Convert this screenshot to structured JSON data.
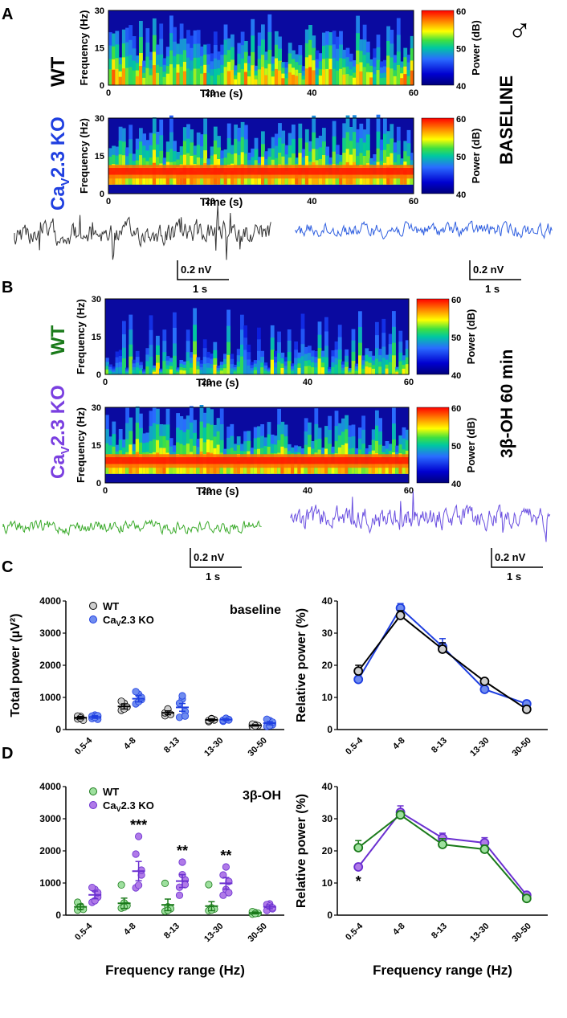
{
  "colors": {
    "wt_text": "#000000",
    "ko_text_a": "#1f3fe0",
    "wt_text_b": "#1a7a1a",
    "ko_text_b": "#7a3fe0",
    "wt_fill_c": "#cfcfcf",
    "ko_fill_c": "#6f8cf0",
    "wt_line_c": "#000000",
    "ko_line_c": "#1f3fe0",
    "wt_fill_d": "#9ee09e",
    "ko_fill_d": "#b07ae8",
    "wt_line_d": "#1a7a1a",
    "ko_line_d": "#6a2fd0",
    "trace_wt_a": "#333333",
    "trace_ko_a": "#2f5fe0",
    "trace_wt_b": "#3aaa2a",
    "trace_ko_b": "#6a4fe0"
  },
  "panels": {
    "A": {
      "letter": "A",
      "condition": "BASELINE",
      "sex_symbol": "♂",
      "rows": [
        {
          "label": "WT",
          "label_color_key": "wt_text"
        },
        {
          "label_main": "Ca",
          "label_sub": "V",
          "label_rest": "2.3 KO",
          "label_color_key": "ko_text_a"
        }
      ],
      "scale_bar": {
        "voltage": "0.2 nV",
        "time": "1 s"
      }
    },
    "B": {
      "letter": "B",
      "condition": "3β-OH 60 min",
      "rows": [
        {
          "label": "WT",
          "label_color_key": "wt_text_b"
        },
        {
          "label_main": "Ca",
          "label_sub": "V",
          "label_rest": "2.3 KO",
          "label_color_key": "ko_text_b"
        }
      ],
      "scale_bar": {
        "voltage": "0.2 nV",
        "time": "1 s"
      }
    },
    "C": {
      "letter": "C"
    },
    "D": {
      "letter": "D"
    }
  },
  "spectrogram_axes": {
    "ylabel": "Frequency (Hz)",
    "xlabel": "Time (s)",
    "yticks": [
      "0",
      "15",
      "30"
    ],
    "xticks": [
      "0",
      "20",
      "40",
      "60"
    ],
    "colorbar_label": "Power (dB)",
    "colorbar_ticks": [
      "60",
      "50",
      "40"
    ]
  },
  "chart_data": [
    {
      "id": "C-total",
      "type": "scatter",
      "title": "baseline",
      "xlabel": "",
      "ylabel": "Total power (µV²)",
      "categories": [
        "0.5-4",
        "4-8",
        "8-13",
        "13-30",
        "30-50"
      ],
      "ylim": [
        0,
        4000
      ],
      "yticks": [
        0,
        1000,
        2000,
        3000,
        4000
      ],
      "legend": [
        "WT",
        "CaV2.3 KO"
      ],
      "series": [
        {
          "name": "WT",
          "mean": [
            370,
            720,
            520,
            300,
            130
          ],
          "sem": [
            40,
            80,
            60,
            30,
            20
          ],
          "points": [
            [
              330,
              410,
              290,
              420,
              360
            ],
            [
              600,
              820,
              700,
              880,
              640
            ],
            [
              430,
              600,
              470,
              520,
              640
            ],
            [
              250,
              340,
              300,
              280,
              330
            ],
            [
              90,
              150,
              120,
              170,
              110
            ]
          ]
        },
        {
          "name": "CaV2.3 KO",
          "mean": [
            390,
            960,
            690,
            310,
            200
          ],
          "sem": [
            40,
            100,
            120,
            30,
            50
          ],
          "points": [
            [
              340,
              450,
              320,
              420,
              380,
              430
            ],
            [
              800,
              1100,
              930,
              1180,
              870,
              1000
            ],
            [
              380,
              950,
              560,
              820,
              1050,
              420
            ],
            [
              260,
              340,
              310,
              290,
              350,
              300
            ],
            [
              100,
              280,
              150,
              320,
              120,
              230
            ]
          ]
        }
      ]
    },
    {
      "id": "C-relative",
      "type": "line",
      "title": "",
      "xlabel": "",
      "ylabel": "Relative power (%)",
      "categories": [
        "0.5-4",
        "4-8",
        "8-13",
        "13-30",
        "30-50"
      ],
      "ylim": [
        0,
        40
      ],
      "yticks": [
        0,
        10,
        20,
        30,
        40
      ],
      "series": [
        {
          "name": "WT",
          "values": [
            18.2,
            35.5,
            25.0,
            15.0,
            6.3
          ],
          "sem": [
            1.8,
            1.5,
            2.0,
            0.8,
            0.8
          ]
        },
        {
          "name": "CaV2.3 KO",
          "values": [
            15.6,
            37.8,
            25.8,
            12.5,
            8.0
          ],
          "sem": [
            1.5,
            1.4,
            2.5,
            0.8,
            1.0
          ]
        }
      ]
    },
    {
      "id": "D-total",
      "type": "scatter",
      "title": "3β-OH",
      "xlabel": "Frequency range (Hz)",
      "ylabel": "",
      "categories": [
        "0.5-4",
        "4-8",
        "8-13",
        "13-30",
        "30-50"
      ],
      "ylim": [
        0,
        4000
      ],
      "yticks": [
        0,
        1000,
        2000,
        3000,
        4000
      ],
      "legend": [
        "WT",
        "CaV2.3 KO"
      ],
      "annotations": [
        "",
        "***",
        "**",
        "**",
        ""
      ],
      "series": [
        {
          "name": "WT",
          "mean": [
            260,
            370,
            320,
            280,
            70
          ],
          "sem": [
            80,
            160,
            180,
            140,
            30
          ],
          "points": [
            [
              160,
              280,
              180,
              400,
              260
            ],
            [
              220,
              380,
              300,
              940,
              250
            ],
            [
              120,
              260,
              200,
              990,
              150
            ],
            [
              140,
              230,
              190,
              950,
              160
            ],
            [
              30,
              80,
              60,
              110,
              50
            ]
          ]
        },
        {
          "name": "CaV2.3 KO",
          "mean": [
            630,
            1370,
            1060,
            990,
            260
          ],
          "sem": [
            120,
            300,
            200,
            180,
            60
          ],
          "points": [
            [
              400,
              800,
              560,
              860,
              450,
              700
            ],
            [
              850,
              2450,
              1250,
              1900,
              930,
              1400
            ],
            [
              620,
              1650,
              1100,
              870,
              1260,
              950
            ],
            [
              620,
              1500,
              1050,
              1250,
              800,
              700
            ],
            [
              150,
              350,
              200,
              330,
              280,
              230
            ]
          ]
        }
      ]
    },
    {
      "id": "D-relative",
      "type": "line",
      "title": "",
      "xlabel": "Frequency range (Hz)",
      "ylabel": "Relative power (%)",
      "categories": [
        "0.5-4",
        "4-8",
        "8-13",
        "13-30",
        "30-50"
      ],
      "ylim": [
        0,
        40
      ],
      "yticks": [
        0,
        10,
        20,
        30,
        40
      ],
      "annotations": [
        "*",
        "",
        "",
        "",
        ""
      ],
      "series": [
        {
          "name": "WT",
          "values": [
            21.0,
            31.2,
            22.0,
            20.5,
            5.2
          ],
          "sem": [
            2.2,
            1.2,
            1.8,
            1.3,
            0.6
          ]
        },
        {
          "name": "CaV2.3 KO",
          "values": [
            15.0,
            32.0,
            24.0,
            22.5,
            6.2
          ],
          "sem": [
            1.0,
            2.0,
            1.5,
            1.6,
            0.6
          ]
        }
      ]
    }
  ]
}
